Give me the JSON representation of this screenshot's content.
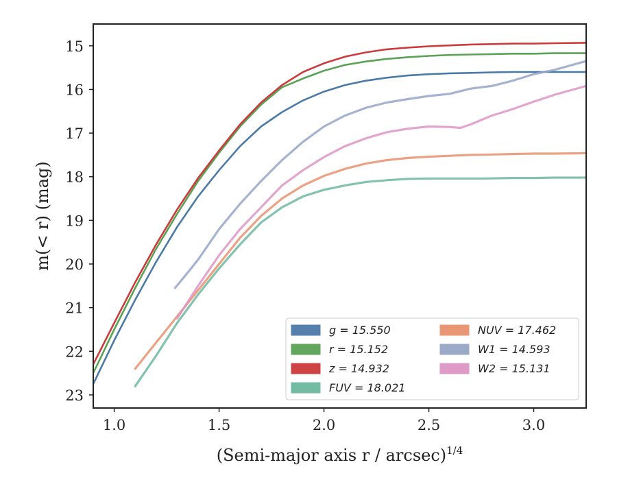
{
  "chart_data": {
    "type": "line",
    "xlabel": "(Semi-major axis r / arcsec)",
    "xlabel_power": "1/4",
    "ylabel": "m(< r) (mag)",
    "xlim": [
      0.9,
      3.25
    ],
    "ylim": [
      23.3,
      14.5
    ],
    "y_inverted": true,
    "x_ticks": [
      1.0,
      1.5,
      2.0,
      2.5,
      3.0
    ],
    "x_tick_labels": [
      "1.0",
      "1.5",
      "2.0",
      "2.5",
      "3.0"
    ],
    "y_ticks": [
      15,
      16,
      17,
      18,
      19,
      20,
      21,
      22,
      23
    ],
    "y_tick_labels": [
      "15",
      "16",
      "17",
      "18",
      "19",
      "20",
      "21",
      "22",
      "23"
    ],
    "grid": false,
    "legend_position": "bottom-right",
    "legend_columns": 2,
    "series": [
      {
        "name": "g = 15.550",
        "color": "#4c7aa8",
        "x": [
          0.9,
          1.0,
          1.1,
          1.2,
          1.3,
          1.4,
          1.5,
          1.6,
          1.7,
          1.8,
          1.9,
          2.0,
          2.1,
          2.2,
          2.3,
          2.4,
          2.5,
          2.6,
          2.7,
          2.8,
          2.9,
          3.0,
          3.1,
          3.25
        ],
        "y": [
          22.75,
          21.75,
          20.82,
          19.95,
          19.15,
          18.45,
          17.85,
          17.3,
          16.85,
          16.52,
          16.25,
          16.05,
          15.9,
          15.8,
          15.73,
          15.68,
          15.65,
          15.63,
          15.62,
          15.61,
          15.6,
          15.6,
          15.6,
          15.6
        ]
      },
      {
        "name": "r = 15.152",
        "color": "#5aa356",
        "x": [
          0.9,
          1.0,
          1.1,
          1.2,
          1.3,
          1.4,
          1.5,
          1.6,
          1.7,
          1.8,
          1.9,
          2.0,
          2.1,
          2.2,
          2.3,
          2.4,
          2.5,
          2.6,
          2.7,
          2.8,
          2.9,
          3.0,
          3.1,
          3.25
        ],
        "y": [
          22.5,
          21.5,
          20.55,
          19.65,
          18.85,
          18.1,
          17.45,
          16.85,
          16.35,
          15.95,
          15.75,
          15.57,
          15.44,
          15.36,
          15.3,
          15.26,
          15.23,
          15.21,
          15.2,
          15.19,
          15.18,
          15.18,
          15.17,
          15.17
        ]
      },
      {
        "name": "z = 14.932",
        "color": "#cc3b3b",
        "x": [
          0.9,
          1.0,
          1.1,
          1.2,
          1.3,
          1.4,
          1.5,
          1.6,
          1.7,
          1.8,
          1.9,
          2.0,
          2.1,
          2.2,
          2.3,
          2.4,
          2.5,
          2.6,
          2.7,
          2.8,
          2.9,
          3.0,
          3.1,
          3.25
        ],
        "y": [
          22.3,
          21.35,
          20.42,
          19.55,
          18.75,
          18.03,
          17.4,
          16.8,
          16.3,
          15.9,
          15.6,
          15.4,
          15.25,
          15.15,
          15.08,
          15.04,
          15.01,
          14.99,
          14.97,
          14.96,
          14.95,
          14.95,
          14.94,
          14.93
        ]
      },
      {
        "name": "FUV = 18.021",
        "color": "#6db8a0",
        "x": [
          1.1,
          1.2,
          1.3,
          1.4,
          1.5,
          1.6,
          1.7,
          1.8,
          1.9,
          2.0,
          2.1,
          2.2,
          2.3,
          2.4,
          2.5,
          2.6,
          2.7,
          2.77,
          2.9,
          3.0,
          3.1,
          3.25
        ],
        "y": [
          22.8,
          22.1,
          21.35,
          20.7,
          20.1,
          19.55,
          19.05,
          18.7,
          18.45,
          18.3,
          18.2,
          18.12,
          18.08,
          18.05,
          18.04,
          18.04,
          18.04,
          18.04,
          18.03,
          18.03,
          18.02,
          18.02
        ]
      },
      {
        "name": "NUV = 17.462",
        "color": "#e8916e",
        "x": [
          1.1,
          1.2,
          1.3,
          1.4,
          1.5,
          1.6,
          1.7,
          1.8,
          1.9,
          2.0,
          2.1,
          2.2,
          2.3,
          2.4,
          2.5,
          2.6,
          2.7,
          2.8,
          2.9,
          3.0,
          3.1,
          3.25
        ],
        "y": [
          22.4,
          21.8,
          21.2,
          20.6,
          20.0,
          19.4,
          18.9,
          18.5,
          18.2,
          17.98,
          17.82,
          17.7,
          17.62,
          17.57,
          17.54,
          17.52,
          17.5,
          17.49,
          17.48,
          17.47,
          17.47,
          17.46
        ]
      },
      {
        "name": "W1 = 14.593",
        "color": "#97a6c8",
        "x": [
          1.29,
          1.35,
          1.4,
          1.5,
          1.6,
          1.7,
          1.8,
          1.9,
          2.0,
          2.1,
          2.2,
          2.3,
          2.4,
          2.5,
          2.6,
          2.7,
          2.8,
          2.9,
          3.0,
          3.1,
          3.25
        ],
        "y": [
          20.55,
          20.2,
          19.9,
          19.2,
          18.62,
          18.1,
          17.62,
          17.2,
          16.85,
          16.6,
          16.42,
          16.3,
          16.22,
          16.15,
          16.1,
          15.98,
          15.92,
          15.8,
          15.65,
          15.55,
          15.35
        ]
      },
      {
        "name": "W2 = 15.131",
        "color": "#dd96c6",
        "x": [
          1.3,
          1.4,
          1.5,
          1.6,
          1.7,
          1.8,
          1.9,
          2.0,
          2.1,
          2.2,
          2.3,
          2.4,
          2.5,
          2.6,
          2.65,
          2.7,
          2.8,
          2.9,
          3.0,
          3.1,
          3.25
        ],
        "y": [
          21.25,
          20.5,
          19.8,
          19.2,
          18.7,
          18.2,
          17.85,
          17.55,
          17.3,
          17.12,
          16.98,
          16.9,
          16.85,
          16.86,
          16.88,
          16.8,
          16.6,
          16.45,
          16.28,
          16.12,
          15.92
        ]
      }
    ]
  }
}
